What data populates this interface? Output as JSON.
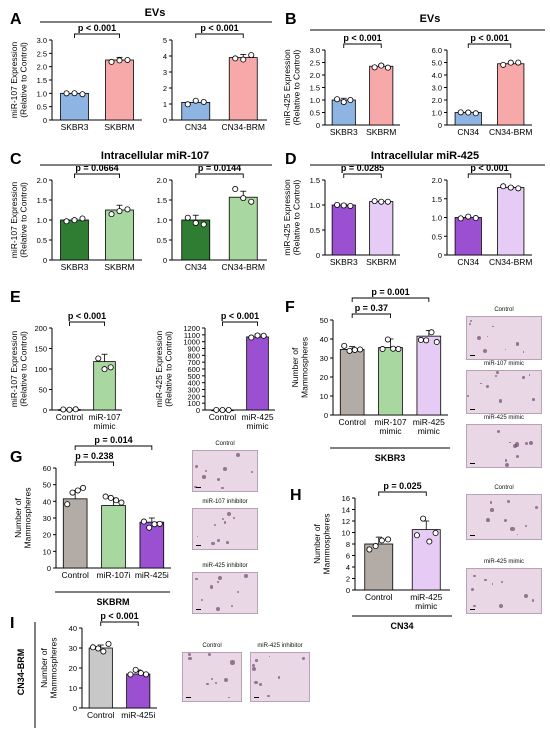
{
  "figure": {
    "panel_letters": [
      "A",
      "B",
      "C",
      "D",
      "E",
      "F",
      "G",
      "H",
      "I"
    ],
    "headers": {
      "A": "EVs",
      "B": "EVs",
      "C": "Intracellular miR-107",
      "D": "Intracellular miR-425"
    },
    "group_labels": {
      "F": "SKBR3",
      "G": "SKBRM",
      "H": "CN34",
      "I": "CN34-BRM"
    },
    "micrograph_titles": {
      "F": [
        "Control",
        "miR-107 mimic",
        "miR-425 mimic"
      ],
      "G": [
        "Control",
        "miR-107 inhibitor",
        "miR-425 inhibitor"
      ],
      "H": [
        "Control",
        "miR-425 mimic"
      ],
      "I": [
        "Control",
        "miR-425 inhibitor"
      ]
    }
  },
  "colors": {
    "blue": "#8db4e2",
    "pink": "#f7a8a8",
    "dark_green": "#2e7d32",
    "light_green": "#a8d8a0",
    "purple": "#9b4fd1",
    "lavender": "#e6ccf5",
    "gray": "#b3aba5",
    "gray_light": "#c8c8c8",
    "micro_bg": "#ead7e6"
  },
  "chart_data": [
    {
      "id": "A1",
      "type": "bar",
      "categories": [
        "SKBR3",
        "SKBRM"
      ],
      "values": [
        1.0,
        2.25
      ],
      "errors": [
        0.03,
        0.1
      ],
      "ylabel": "miR-107 Expression\n(Relative to Control)",
      "ylim": [
        0,
        3
      ],
      "yticks": [
        "0",
        "0.5",
        "1.0",
        "1.5",
        "2.0",
        "2.5",
        "3.0"
      ],
      "pvalues": [
        {
          "text": "p < 0.001",
          "from": 0,
          "to": 1
        }
      ],
      "colors": [
        "blue",
        "pink"
      ]
    },
    {
      "id": "A2",
      "type": "bar",
      "categories": [
        "CN34",
        "CN34-BRM"
      ],
      "values": [
        1.1,
        3.9
      ],
      "errors": [
        0.1,
        0.2
      ],
      "ylabel": "",
      "ylim": [
        0,
        5
      ],
      "yticks": [
        "0",
        "1",
        "2",
        "3",
        "4",
        "5"
      ],
      "pvalues": [
        {
          "text": "p < 0.001",
          "from": 0,
          "to": 1
        }
      ],
      "colors": [
        "blue",
        "pink"
      ]
    },
    {
      "id": "B1",
      "type": "bar",
      "categories": [
        "SKBR3",
        "SKBRM"
      ],
      "values": [
        1.0,
        2.35
      ],
      "errors": [
        0.07,
        0.06
      ],
      "ylabel": "miR-425 Expression\n(Relative to Control)",
      "ylim": [
        0,
        3
      ],
      "yticks": [
        "0",
        "0.5",
        "1.0",
        "1.5",
        "2.0",
        "2.5",
        "3.0"
      ],
      "pvalues": [
        {
          "text": "p < 0.001",
          "from": 0,
          "to": 1
        }
      ],
      "colors": [
        "blue",
        "pink"
      ]
    },
    {
      "id": "B2",
      "type": "bar",
      "categories": [
        "CN34",
        "CN34-BRM"
      ],
      "values": [
        1.0,
        4.9
      ],
      "errors": [
        0.07,
        0.07
      ],
      "ylabel": "",
      "ylim": [
        0,
        6
      ],
      "yticks": [
        "0",
        "1.0",
        "2.0",
        "3.0",
        "4.0",
        "5.0",
        "6.0"
      ],
      "pvalues": [
        {
          "text": "p < 0.001",
          "from": 0,
          "to": 1
        }
      ],
      "colors": [
        "blue",
        "pink"
      ]
    },
    {
      "id": "C1",
      "type": "bar",
      "categories": [
        "SKBR3",
        "SKBRM"
      ],
      "values": [
        1.0,
        1.25
      ],
      "errors": [
        0.03,
        0.12
      ],
      "ylabel": "miR-107 Expression\n(Relative to Control)",
      "ylim": [
        0,
        2
      ],
      "yticks": [
        "0",
        "0.5",
        "1.0",
        "1.5",
        "2.0"
      ],
      "pvalues": [
        {
          "text": "p = 0.0664",
          "from": 0,
          "to": 1
        }
      ],
      "colors": [
        "dark_green",
        "light_green"
      ]
    },
    {
      "id": "C2",
      "type": "bar",
      "categories": [
        "CN34",
        "CN34-BRM"
      ],
      "values": [
        1.0,
        1.57
      ],
      "errors": [
        0.12,
        0.15
      ],
      "ylabel": "",
      "ylim": [
        0,
        2
      ],
      "yticks": [
        "0",
        "0.5",
        "1.0",
        "1.5",
        "2.0"
      ],
      "pvalues": [
        {
          "text": "p = 0.0144",
          "from": 0,
          "to": 1
        }
      ],
      "colors": [
        "dark_green",
        "light_green"
      ]
    },
    {
      "id": "D1",
      "type": "bar",
      "categories": [
        "SKBR3",
        "SKBRM"
      ],
      "values": [
        1.0,
        1.07
      ],
      "errors": [
        0.02,
        0.01
      ],
      "ylabel": "miR-425 Expression\n(Relative to Control)",
      "ylim": [
        0,
        1.5
      ],
      "yticks": [
        "0",
        "0.5",
        "1.0",
        "1.5"
      ],
      "pvalues": [
        {
          "text": "p = 0.0285",
          "from": 0,
          "to": 1
        }
      ],
      "colors": [
        "purple",
        "lavender"
      ]
    },
    {
      "id": "D2",
      "type": "bar",
      "categories": [
        "CN34",
        "CN34-BRM"
      ],
      "values": [
        1.0,
        1.8
      ],
      "errors": [
        0.02,
        0.03
      ],
      "ylabel": "",
      "ylim": [
        0,
        2
      ],
      "yticks": [
        "0",
        "0.5",
        "1.0",
        "1.5",
        "2.0"
      ],
      "pvalues": [
        {
          "text": "p < 0.001",
          "from": 0,
          "to": 1
        }
      ],
      "colors": [
        "purple",
        "lavender"
      ]
    },
    {
      "id": "E1",
      "type": "bar",
      "categories": [
        "Control",
        "miR-107\nmimic"
      ],
      "values": [
        1,
        118
      ],
      "errors": [
        1,
        18
      ],
      "ylabel": "miR-107 Expression\n(Relative to Control)",
      "ylim": [
        0,
        200
      ],
      "yticks": [
        "0",
        "50",
        "100",
        "150",
        "200"
      ],
      "pvalues": [
        {
          "text": "p < 0.001",
          "from": 0,
          "to": 1
        }
      ],
      "colors": [
        "gray_light",
        "light_green"
      ]
    },
    {
      "id": "E2",
      "type": "bar",
      "categories": [
        "Control",
        "miR-425\nmimic"
      ],
      "values": [
        1,
        1070
      ],
      "errors": [
        1,
        40
      ],
      "ylabel": "miR-425 Expression\n(Relative to Control)",
      "ylim": [
        0,
        1200
      ],
      "yticks": [
        "0",
        "100",
        "200",
        "300",
        "400",
        "500",
        "600",
        "700",
        "800",
        "900",
        "1000",
        "1100",
        "1200"
      ],
      "pvalues": [
        {
          "text": "p < 0.001",
          "from": 0,
          "to": 1
        }
      ],
      "colors": [
        "gray_light",
        "purple"
      ]
    },
    {
      "id": "F",
      "type": "bar",
      "categories": [
        "Control",
        "miR-107\nmimic",
        "miR-425\nmimic"
      ],
      "values": [
        34.5,
        35.5,
        41.5
      ],
      "errors": [
        1.5,
        4.5,
        3.0
      ],
      "ylabel": "Number of\nMammospheres",
      "ylim": [
        0,
        50
      ],
      "yticks": [
        "0",
        "10",
        "20",
        "30",
        "40",
        "50"
      ],
      "pvalues": [
        {
          "text": "p = 0.37",
          "from": 0,
          "to": 1
        },
        {
          "text": "p = 0.001",
          "from": 0,
          "to": 2
        }
      ],
      "colors": [
        "gray",
        "light_green",
        "lavender"
      ]
    },
    {
      "id": "G",
      "type": "bar",
      "categories": [
        "Control",
        "miR-107i",
        "miR-425i"
      ],
      "values": [
        41.5,
        37.5,
        27.5
      ],
      "errors": [
        5,
        4.5,
        2.5
      ],
      "ylabel": "Number of\nMammospheres",
      "ylim": [
        0,
        60
      ],
      "yticks": [
        "0",
        "10",
        "20",
        "30",
        "40",
        "50",
        "60"
      ],
      "pvalues": [
        {
          "text": "p = 0.238",
          "from": 0,
          "to": 1
        },
        {
          "text": "p = 0.014",
          "from": 0,
          "to": 2
        }
      ],
      "colors": [
        "gray",
        "light_green",
        "purple"
      ]
    },
    {
      "id": "H",
      "type": "bar",
      "categories": [
        "Control",
        "miR-425\nmimic"
      ],
      "values": [
        8,
        10.5
      ],
      "errors": [
        1.2,
        1.5
      ],
      "ylabel": "Number of\nMammospheres",
      "ylim": [
        0,
        16
      ],
      "yticks": [
        "0",
        "2",
        "4",
        "6",
        "8",
        "10",
        "12",
        "14",
        "16"
      ],
      "pvalues": [
        {
          "text": "p = 0.025",
          "from": 0,
          "to": 1
        }
      ],
      "colors": [
        "gray",
        "lavender"
      ]
    },
    {
      "id": "I",
      "type": "bar",
      "categories": [
        "Control",
        "miR-425i"
      ],
      "values": [
        30,
        17
      ],
      "errors": [
        1.5,
        2
      ],
      "ylabel": "Number of\nMammospheres",
      "ylim": [
        0,
        40
      ],
      "yticks": [
        "0",
        "10",
        "20",
        "30",
        "40"
      ],
      "pvalues": [
        {
          "text": "p < 0.001",
          "from": 0,
          "to": 1
        }
      ],
      "colors": [
        "gray_light",
        "purple"
      ]
    }
  ]
}
